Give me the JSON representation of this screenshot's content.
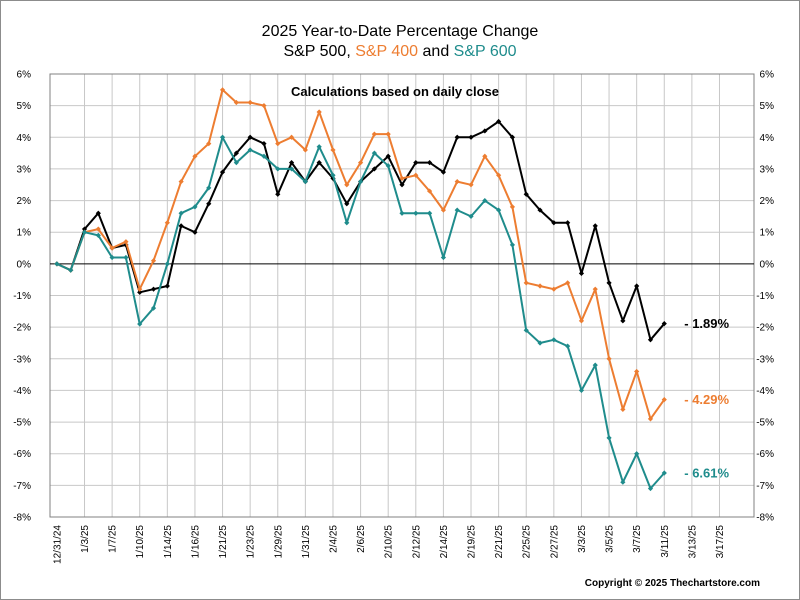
{
  "chart_data": {
    "type": "line",
    "title": {
      "line1": "2025 Year-to-Date Percentage Change",
      "part1": "S&P 500",
      "sep1": ", ",
      "part2": "S&P 400",
      "sep2": " and ",
      "part3": "S&P 600"
    },
    "annotation": "Calculations based on daily close",
    "copyright": "Copyright © 2025 Thechartstore.com",
    "ylim": [
      -8,
      6
    ],
    "yticks": [
      6,
      5,
      4,
      3,
      2,
      1,
      0,
      -1,
      -2,
      -3,
      -4,
      -5,
      -6,
      -7,
      -8
    ],
    "ytick_labels": [
      "6%",
      "5%",
      "4%",
      "3%",
      "2%",
      "1%",
      "0%",
      "-1%",
      "-2%",
      "-3%",
      "-4%",
      "-5%",
      "-6%",
      "-7%",
      "-8%"
    ],
    "xtick_labels": [
      "12/31/24",
      "1/3/25",
      "1/7/25",
      "1/10/25",
      "1/14/25",
      "1/16/25",
      "1/21/25",
      "1/23/25",
      "1/29/25",
      "1/31/25",
      "2/4/25",
      "2/6/25",
      "2/10/25",
      "2/12/25",
      "2/14/25",
      "2/19/25",
      "2/21/25",
      "2/25/25",
      "2/27/25",
      "3/3/25",
      "3/5/25",
      "3/7/25",
      "3/11/25",
      "3/13/25",
      "3/17/25"
    ],
    "x_slots": 51,
    "grid": true,
    "series": [
      {
        "name": "S&P 500",
        "color": "#000000",
        "end_label": "- 1.89%",
        "values": [
          0,
          -0.2,
          1.1,
          1.6,
          0.5,
          0.6,
          -0.9,
          -0.8,
          -0.7,
          1.2,
          1.0,
          1.9,
          2.9,
          3.5,
          4.0,
          3.8,
          2.2,
          3.2,
          2.6,
          3.2,
          2.7,
          1.9,
          2.6,
          3.0,
          3.4,
          2.5,
          3.2,
          3.2,
          2.9,
          4.0,
          4.0,
          4.2,
          4.5,
          4.0,
          2.2,
          1.7,
          1.3,
          1.3,
          -0.3,
          1.2,
          -0.6,
          -1.8,
          -0.7,
          -2.4,
          -1.89
        ]
      },
      {
        "name": "S&P 400",
        "color": "#ed7d31",
        "end_label": "- 4.29%",
        "values": [
          0,
          -0.2,
          1.0,
          1.1,
          0.5,
          0.7,
          -0.8,
          0.1,
          1.3,
          2.6,
          3.4,
          3.8,
          5.5,
          5.1,
          5.1,
          5.0,
          3.8,
          4.0,
          3.6,
          4.8,
          3.6,
          2.5,
          3.2,
          4.1,
          4.1,
          2.7,
          2.8,
          2.3,
          1.7,
          2.6,
          2.5,
          3.4,
          2.8,
          1.8,
          -0.6,
          -0.7,
          -0.8,
          -0.6,
          -1.8,
          -0.8,
          -3.0,
          -4.6,
          -3.4,
          -4.9,
          -4.29
        ]
      },
      {
        "name": "S&P 600",
        "color": "#1f8c8c",
        "end_label": "- 6.61%",
        "values": [
          0,
          -0.2,
          1.0,
          0.9,
          0.2,
          0.2,
          -1.9,
          -1.4,
          0.0,
          1.6,
          1.8,
          2.4,
          4.0,
          3.2,
          3.6,
          3.4,
          3.0,
          3.0,
          2.6,
          3.7,
          2.8,
          1.3,
          2.6,
          3.5,
          3.1,
          1.6,
          1.6,
          1.6,
          0.2,
          1.7,
          1.5,
          2.0,
          1.7,
          0.6,
          -2.1,
          -2.5,
          -2.4,
          -2.6,
          -4.0,
          -3.2,
          -5.5,
          -6.9,
          -6.0,
          -7.1,
          -6.61
        ]
      }
    ]
  }
}
